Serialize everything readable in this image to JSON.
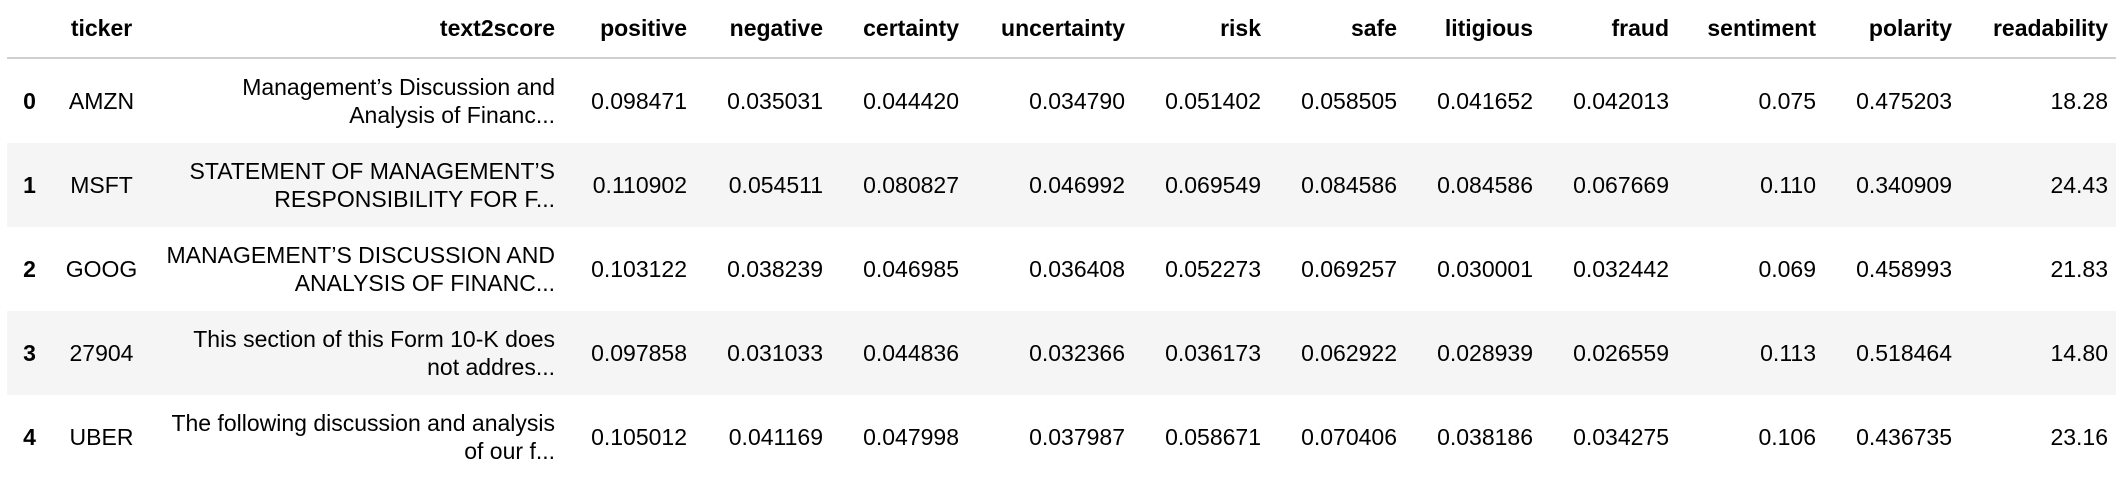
{
  "table": {
    "columns": [
      "ticker",
      "text2score",
      "positive",
      "negative",
      "certainty",
      "uncertainty",
      "risk",
      "safe",
      "litigious",
      "fraud",
      "sentiment",
      "polarity",
      "readability"
    ],
    "rows": [
      [
        "0",
        "AMZN",
        "Management’s Discussion and Analysis of Financ...",
        "0.098471",
        "0.035031",
        "0.044420",
        "0.034790",
        "0.051402",
        "0.058505",
        "0.041652",
        "0.042013",
        "0.075",
        "0.475203",
        "18.28"
      ],
      [
        "1",
        "MSFT",
        "STATEMENT OF MANAGEMENT’S RESPONSIBILITY FOR F...",
        "0.110902",
        "0.054511",
        "0.080827",
        "0.046992",
        "0.069549",
        "0.084586",
        "0.084586",
        "0.067669",
        "0.110",
        "0.340909",
        "24.43"
      ],
      [
        "2",
        "GOOG",
        "MANAGEMENT’S DISCUSSION AND ANALYSIS OF FINANC...",
        "0.103122",
        "0.038239",
        "0.046985",
        "0.036408",
        "0.052273",
        "0.069257",
        "0.030001",
        "0.032442",
        "0.069",
        "0.458993",
        "21.83"
      ],
      [
        "3",
        "27904",
        "This section of this Form 10-K does not addres...",
        "0.097858",
        "0.031033",
        "0.044836",
        "0.032366",
        "0.036173",
        "0.062922",
        "0.028939",
        "0.026559",
        "0.113",
        "0.518464",
        "14.80"
      ],
      [
        "4",
        "UBER",
        "The following discussion and analysis of our f...",
        "0.105012",
        "0.041169",
        "0.047998",
        "0.037987",
        "0.058671",
        "0.070406",
        "0.038186",
        "0.034275",
        "0.106",
        "0.436735",
        "23.16"
      ]
    ]
  }
}
